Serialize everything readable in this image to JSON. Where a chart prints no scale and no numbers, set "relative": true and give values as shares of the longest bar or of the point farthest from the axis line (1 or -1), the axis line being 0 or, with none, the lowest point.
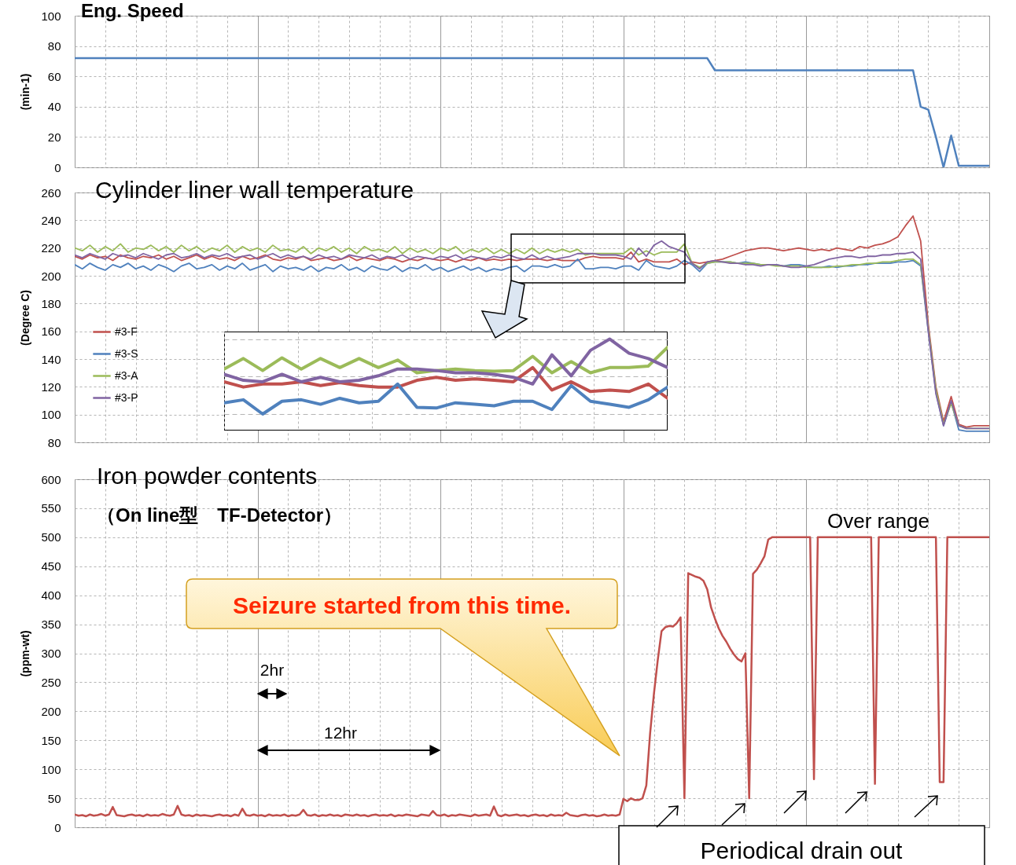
{
  "chart_data": [
    {
      "type": "line",
      "title": "Eng. Speed",
      "ylabel": "(min-1)",
      "ylim": [
        0,
        100
      ],
      "yticks": [
        0,
        20,
        40,
        60,
        80,
        100
      ],
      "grid": true,
      "tick_labels": "y",
      "categories": [
        null,
        null,
        null,
        null,
        null,
        null,
        null,
        null,
        null,
        null,
        null,
        null,
        null,
        null,
        null,
        null,
        null,
        null,
        null,
        null,
        null,
        null,
        null,
        null,
        null,
        null,
        null,
        null,
        null,
        null,
        null,
        null,
        null,
        null,
        null,
        null,
        null,
        null,
        null,
        null,
        null,
        null,
        null,
        null,
        null,
        null,
        null,
        null,
        null,
        null,
        null,
        null,
        null,
        null,
        null,
        null,
        null,
        null,
        null,
        null,
        null,
        null,
        null,
        null,
        null,
        null,
        null,
        null,
        null,
        null,
        null,
        null,
        null,
        null,
        null,
        null,
        null,
        null,
        null,
        null,
        null,
        null,
        null,
        null,
        null,
        null,
        null,
        null,
        null,
        null,
        null,
        null,
        null,
        null,
        null,
        null,
        null,
        null,
        null,
        null,
        null,
        null,
        null,
        null,
        null,
        null,
        null,
        null,
        null,
        null,
        null,
        null,
        null,
        null,
        null,
        null,
        null,
        null,
        null,
        null,
        null
      ],
      "series": [
        {
          "color": "#4f81bd",
          "values": [
            72,
            72,
            72,
            72,
            72,
            72,
            72,
            72,
            72,
            72,
            72,
            72,
            72,
            72,
            72,
            72,
            72,
            72,
            72,
            72,
            72,
            72,
            72,
            72,
            72,
            72,
            72,
            72,
            72,
            72,
            72,
            72,
            72,
            72,
            72,
            72,
            72,
            72,
            72,
            72,
            72,
            72,
            72,
            72,
            72,
            72,
            72,
            72,
            72,
            72,
            72,
            72,
            72,
            72,
            72,
            72,
            72,
            72,
            72,
            72,
            72,
            72,
            72,
            72,
            72,
            72,
            72,
            72,
            72,
            72,
            72,
            72,
            72,
            72,
            72,
            72,
            72,
            72,
            72,
            72,
            72,
            72,
            72,
            72,
            64,
            64,
            64,
            64,
            64,
            64,
            64,
            64,
            64,
            64,
            64,
            64,
            64,
            64,
            64,
            64,
            64,
            64,
            64,
            64,
            64,
            64,
            64,
            64,
            64,
            64,
            64,
            40,
            38,
            20,
            0,
            21,
            1,
            1,
            1,
            1,
            1
          ]
        }
      ]
    },
    {
      "type": "line",
      "title": "Cylinder liner wall temperature",
      "ylabel": "(Degree C)",
      "ylim": [
        80,
        260
      ],
      "yticks": [
        80,
        100,
        120,
        140,
        160,
        180,
        200,
        220,
        240,
        260
      ],
      "grid": true,
      "tick_labels": "y",
      "legend": "left",
      "categories": [
        null,
        null,
        null,
        null,
        null,
        null,
        null,
        null,
        null,
        null,
        null,
        null,
        null,
        null,
        null,
        null,
        null,
        null,
        null,
        null,
        null,
        null,
        null,
        null,
        null,
        null,
        null,
        null,
        null,
        null,
        null,
        null,
        null,
        null,
        null,
        null,
        null,
        null,
        null,
        null,
        null,
        null,
        null,
        null,
        null,
        null,
        null,
        null,
        null,
        null,
        null,
        null,
        null,
        null,
        null,
        null,
        null,
        null,
        null,
        null,
        null,
        null,
        null,
        null,
        null,
        null,
        null,
        null,
        null,
        null,
        null,
        null,
        null,
        null,
        null,
        null,
        null,
        null,
        null,
        null,
        null,
        null,
        null,
        null,
        null,
        null,
        null,
        null,
        null,
        null,
        null,
        null,
        null,
        null,
        null,
        null,
        null,
        null,
        null,
        null,
        null,
        null,
        null,
        null,
        null,
        null,
        null,
        null,
        null,
        null,
        null,
        null,
        null,
        null,
        null,
        null,
        null,
        null,
        null,
        null,
        null
      ],
      "series": [
        {
          "name": "#3-F",
          "color": "#c0504d",
          "values": [
            214,
            212,
            215,
            213,
            214,
            211,
            215,
            213,
            212,
            214,
            213,
            215,
            212,
            214,
            211,
            213,
            215,
            212,
            214,
            212,
            213,
            211,
            214,
            212,
            213,
            215,
            212,
            211,
            213,
            212,
            214,
            211,
            212,
            213,
            211,
            212,
            214,
            211,
            213,
            212,
            211,
            213,
            212,
            210,
            212,
            211,
            213,
            212,
            211,
            212,
            210,
            212,
            211,
            213,
            211,
            212,
            211,
            212,
            211,
            212,
            212,
            212,
            211,
            212,
            211,
            211,
            211,
            213,
            214,
            213,
            213,
            213,
            212,
            217,
            210,
            212,
            210,
            210,
            210,
            212,
            208,
            210,
            209,
            210,
            211,
            212,
            214,
            216,
            218,
            219,
            220,
            220,
            219,
            218,
            219,
            220,
            219,
            218,
            219,
            218,
            220,
            219,
            218,
            221,
            220,
            222,
            223,
            225,
            228,
            236,
            243,
            225,
            165,
            120,
            95,
            113,
            93,
            91,
            92,
            92,
            92
          ]
        },
        {
          "name": "#3-S",
          "color": "#4f81bd",
          "values": [
            208,
            205,
            209,
            206,
            204,
            208,
            206,
            209,
            205,
            207,
            204,
            208,
            206,
            203,
            207,
            209,
            205,
            206,
            208,
            204,
            207,
            205,
            209,
            204,
            206,
            208,
            203,
            207,
            205,
            206,
            204,
            207,
            203,
            206,
            205,
            208,
            204,
            206,
            203,
            207,
            205,
            204,
            207,
            203,
            206,
            205,
            208,
            204,
            206,
            203,
            205,
            207,
            204,
            206,
            203,
            205,
            204,
            206,
            207,
            203,
            207,
            207,
            206,
            208,
            206,
            207,
            212,
            205,
            205,
            206,
            206,
            205,
            207,
            207,
            204,
            211,
            207,
            206,
            205,
            207,
            211,
            208,
            203,
            209,
            210,
            210,
            210,
            209,
            210,
            209,
            208,
            208,
            208,
            207,
            208,
            208,
            207,
            206,
            206,
            207,
            206,
            207,
            207,
            208,
            208,
            209,
            209,
            209,
            210,
            210,
            211,
            207,
            160,
            116,
            92,
            109,
            89,
            88,
            88,
            88,
            88
          ]
        },
        {
          "name": "#3-A",
          "color": "#9bbb59",
          "values": [
            220,
            218,
            222,
            217,
            221,
            218,
            223,
            217,
            220,
            219,
            222,
            218,
            221,
            217,
            222,
            218,
            221,
            217,
            220,
            218,
            222,
            217,
            221,
            218,
            220,
            217,
            222,
            218,
            219,
            217,
            221,
            216,
            220,
            218,
            221,
            217,
            220,
            216,
            221,
            218,
            219,
            217,
            221,
            216,
            220,
            217,
            219,
            216,
            220,
            218,
            221,
            216,
            219,
            217,
            220,
            216,
            219,
            216,
            219,
            216,
            220,
            216,
            219,
            217,
            219,
            217,
            219,
            215,
            216,
            216,
            216,
            216,
            216,
            220,
            215,
            218,
            215,
            217,
            217,
            217,
            223,
            209,
            206,
            209,
            210,
            210,
            210,
            209,
            209,
            209,
            208,
            208,
            207,
            207,
            207,
            207,
            206,
            206,
            206,
            206,
            207,
            207,
            208,
            208,
            209,
            209,
            210,
            210,
            211,
            212,
            212,
            208,
            162,
            118,
            93,
            108,
            92,
            90,
            90,
            90,
            90
          ]
        },
        {
          "name": "#3-P",
          "color": "#8064a2",
          "values": [
            215,
            213,
            216,
            214,
            212,
            216,
            214,
            215,
            213,
            216,
            214,
            212,
            215,
            216,
            213,
            214,
            216,
            213,
            215,
            214,
            216,
            213,
            214,
            215,
            212,
            214,
            216,
            213,
            215,
            213,
            214,
            212,
            215,
            213,
            214,
            212,
            215,
            214,
            213,
            215,
            212,
            214,
            213,
            215,
            212,
            214,
            213,
            212,
            214,
            213,
            215,
            212,
            214,
            213,
            212,
            214,
            213,
            215,
            213,
            212,
            215,
            212,
            214,
            212,
            213,
            214,
            216,
            216,
            216,
            215,
            215,
            215,
            214,
            212,
            220,
            214,
            222,
            225,
            221,
            219,
            217,
            209,
            205,
            210,
            211,
            210,
            209,
            209,
            208,
            208,
            207,
            208,
            208,
            207,
            206,
            206,
            207,
            208,
            210,
            212,
            213,
            214,
            214,
            213,
            214,
            214,
            215,
            215,
            216,
            216,
            217,
            212,
            160,
            115,
            92,
            110,
            92,
            90,
            90,
            90,
            90
          ]
        }
      ]
    },
    {
      "type": "line",
      "relative": true,
      "grid": true,
      "tick_labels": false,
      "categories": [
        null,
        null,
        null,
        null,
        null,
        null,
        null,
        null,
        null,
        null,
        null,
        null,
        null,
        null,
        null,
        null,
        null,
        null,
        null,
        null,
        null,
        null,
        null,
        null
      ],
      "series": [
        {
          "color": "#c0504d",
          "values": [
            0.43,
            0.36,
            0.4,
            0.4,
            0.43,
            0.38,
            0.42,
            0.38,
            0.36,
            0.36,
            0.45,
            0.49,
            0.45,
            0.47,
            0.45,
            0.43,
            0.62,
            0.32,
            0.43,
            0.3,
            0.32,
            0.3,
            0.4,
            0.21
          ]
        },
        {
          "color": "#4f81bd",
          "values": [
            0.15,
            0.19,
            0,
            0.17,
            0.19,
            0.13,
            0.21,
            0.15,
            0.17,
            0.4,
            0.09,
            0.08,
            0.15,
            0.13,
            0.11,
            0.17,
            0.17,
            0.06,
            0.38,
            0.17,
            0.13,
            0.09,
            0.19,
            0.36
          ]
        },
        {
          "color": "#9bbb59",
          "values": [
            0.6,
            0.74,
            0.58,
            0.75,
            0.6,
            0.74,
            0.62,
            0.74,
            0.62,
            0.72,
            0.55,
            0.58,
            0.6,
            0.58,
            0.57,
            0.58,
            0.77,
            0.55,
            0.7,
            0.55,
            0.62,
            0.62,
            0.64,
            0.89
          ]
        },
        {
          "color": "#8064a2",
          "values": [
            0.53,
            0.45,
            0.43,
            0.53,
            0.43,
            0.49,
            0.43,
            0.45,
            0.51,
            0.6,
            0.6,
            0.58,
            0.55,
            0.55,
            0.53,
            0.49,
            0.4,
            0.79,
            0.51,
            0.85,
            1,
            0.81,
            0.74,
            0.62
          ]
        }
      ]
    },
    {
      "type": "line",
      "title": "Iron powder contents",
      "subtitle": "（On line型　TF-Detector）",
      "ylabel": "(ppm-wt)",
      "ylim": [
        0,
        600
      ],
      "yticks": [
        0,
        50,
        100,
        150,
        200,
        250,
        300,
        350,
        400,
        450,
        500,
        550,
        600
      ],
      "grid": true,
      "tick_labels": "y",
      "annotations": [
        "Over range",
        "Seizure started from this time.",
        "2hr",
        "12hr",
        "Periodical drain out"
      ],
      "categories": [
        null,
        null,
        null,
        null,
        null,
        null,
        null,
        null,
        null,
        null,
        null,
        null,
        null,
        null,
        null,
        null,
        null,
        null,
        null,
        null,
        null,
        null,
        null,
        null,
        null,
        null,
        null,
        null,
        null,
        null,
        null,
        null,
        null,
        null,
        null,
        null,
        null,
        null,
        null,
        null,
        null,
        null,
        null,
        null,
        null,
        null,
        null,
        null,
        null,
        null,
        null,
        null,
        null,
        null,
        null,
        null,
        null,
        null,
        null,
        null,
        null,
        null,
        null,
        null,
        null,
        null,
        null,
        null,
        null,
        null,
        null,
        null,
        null,
        null,
        null,
        null,
        null,
        null,
        null,
        null,
        null,
        null,
        null,
        null,
        null,
        null,
        null,
        null,
        null,
        null,
        null,
        null,
        null,
        null,
        null,
        null,
        null,
        null,
        null,
        null,
        null,
        null,
        null,
        null,
        null,
        null,
        null,
        null,
        null,
        null,
        null,
        null,
        null,
        null,
        null,
        null,
        null,
        null,
        null,
        null,
        null,
        null,
        null,
        null,
        null,
        null,
        null,
        null,
        null,
        null,
        null,
        null,
        null,
        null,
        null,
        null,
        null,
        null,
        null,
        null,
        null,
        null,
        null,
        null,
        null,
        null,
        null,
        null,
        null,
        null,
        null,
        null,
        null,
        null,
        null,
        null,
        null,
        null,
        null,
        null,
        null,
        null,
        null,
        null,
        null,
        null,
        null,
        null,
        null,
        null,
        null,
        null,
        null,
        null,
        null,
        null,
        null,
        null,
        null,
        null,
        null,
        null,
        null,
        null,
        null,
        null,
        null,
        null,
        null,
        null,
        null,
        null,
        null,
        null,
        null,
        null,
        null,
        null,
        null,
        null,
        null,
        null,
        null,
        null,
        null,
        null,
        null,
        null,
        null,
        null,
        null,
        null,
        null,
        null,
        null,
        null,
        null,
        null,
        null,
        null,
        null,
        null,
        null,
        null,
        null,
        null,
        null,
        null,
        null,
        null,
        null,
        null,
        null,
        null,
        null,
        null,
        null,
        null,
        null,
        null,
        null
      ],
      "series": [
        {
          "color": "#c0504d",
          "values": [
            22,
            20,
            21,
            19,
            22,
            20,
            21,
            23,
            20,
            22,
            35,
            21,
            20,
            19,
            21,
            22,
            20,
            21,
            19,
            22,
            20,
            21,
            20,
            23,
            21,
            20,
            22,
            37,
            22,
            20,
            21,
            19,
            22,
            20,
            21,
            20,
            19,
            21,
            22,
            20,
            21,
            19,
            22,
            20,
            32,
            21,
            20,
            22,
            20,
            21,
            19,
            22,
            20,
            21,
            20,
            22,
            19,
            21,
            20,
            22,
            30,
            21,
            20,
            22,
            19,
            21,
            20,
            22,
            20,
            21,
            19,
            22,
            21,
            20,
            22,
            20,
            21,
            19,
            21,
            22,
            20,
            21,
            20,
            22,
            19,
            21,
            20,
            22,
            21,
            20,
            19,
            22,
            21,
            20,
            28,
            21,
            20,
            22,
            19,
            21,
            20,
            22,
            21,
            20,
            19,
            22,
            20,
            21,
            22,
            20,
            36,
            21,
            19,
            22,
            20,
            21,
            22,
            20,
            21,
            19,
            21,
            22,
            20,
            21,
            19,
            22,
            20,
            21,
            20,
            25,
            21,
            20,
            19,
            21,
            22,
            20,
            21,
            19,
            20,
            22,
            20,
            21,
            20,
            22,
            49,
            45,
            50,
            47,
            47,
            50,
            72,
            162,
            230,
            288,
            338,
            345,
            347,
            346,
            352,
            362,
            50,
            438,
            435,
            432,
            430,
            425,
            410,
            379,
            360,
            343,
            330,
            320,
            308,
            298,
            290,
            286,
            300,
            50,
            437,
            444,
            455,
            467,
            496,
            500,
            500,
            500,
            500,
            500,
            500,
            500,
            500,
            500,
            500,
            500,
            83,
            500,
            500,
            500,
            500,
            500,
            500,
            500,
            500,
            500,
            500,
            500,
            500,
            500,
            500,
            500,
            75,
            500,
            500,
            500,
            500,
            500,
            500,
            500,
            500,
            500,
            500,
            500,
            500,
            500,
            500,
            500,
            500,
            78,
            78,
            500,
            500,
            500,
            500,
            500,
            500,
            500,
            500,
            500,
            500,
            500,
            500
          ]
        }
      ]
    }
  ]
}
